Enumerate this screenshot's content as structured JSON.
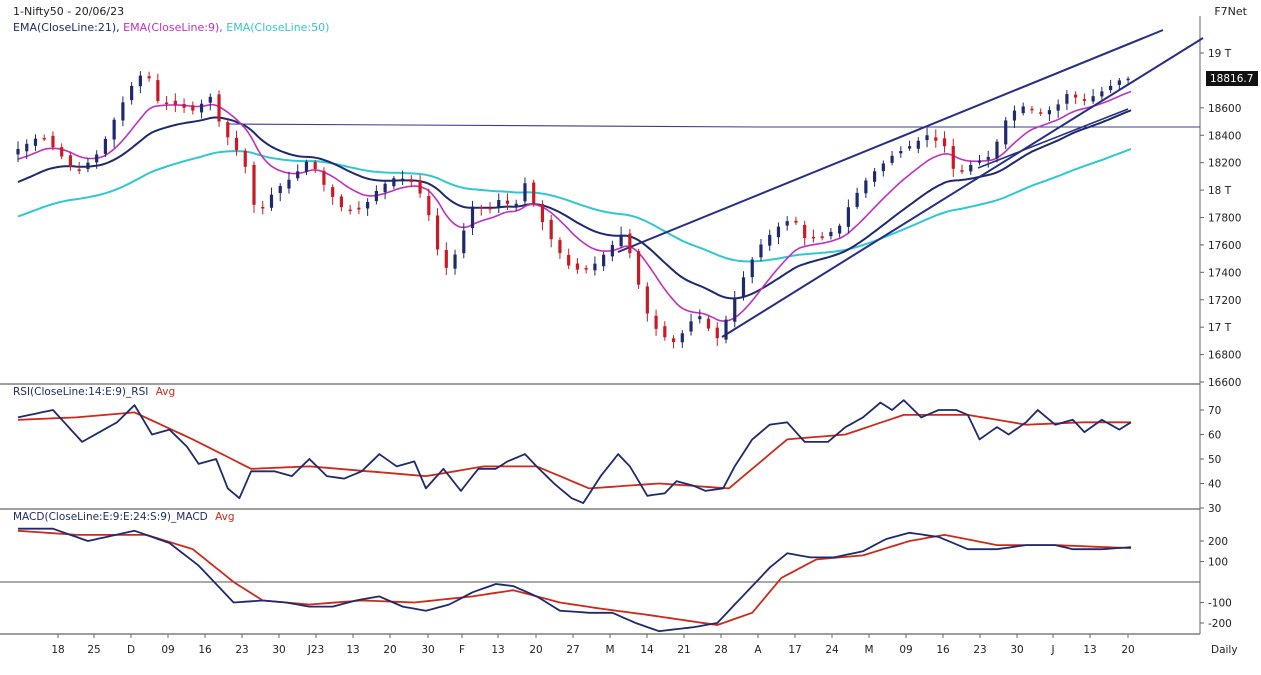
{
  "header": {
    "symbol_line": "1-Nifty50 - 20/06/23",
    "brand": "F7Net",
    "ema_labels": [
      {
        "text": "EMA(CloseLine:21),",
        "color": "#1f2a6e"
      },
      {
        "text": "EMA(CloseLine:9),",
        "color": "#c030c0"
      },
      {
        "text": "EMA(CloseLine:50)",
        "color": "#30c8d0"
      }
    ],
    "price_tag": "18816.7"
  },
  "colors": {
    "up": "#1f2a6e",
    "down": "#cc1a24",
    "ema21": "#1f2a6e",
    "ema9": "#c030c0",
    "ema50": "#30c8d0",
    "trend": "#262e86",
    "rsi": "#1f2a6e",
    "rsi_avg": "#cc2a1a",
    "macd": "#1f2a6e",
    "macd_avg": "#cc2a1a",
    "zero": "#555555"
  },
  "chart_data": [
    {
      "type": "candlestick",
      "title": "1-Nifty50 - 20/06/23",
      "y_ticks": [
        "19 T",
        "18600",
        "18400",
        "18200",
        "18 T",
        "17800",
        "17600",
        "17400",
        "17200",
        "17 T",
        "16800",
        "16600"
      ],
      "y_tick_values": [
        19000,
        18600,
        18400,
        18200,
        18000,
        17800,
        17600,
        17400,
        17200,
        17000,
        16800,
        16600
      ],
      "ylim": [
        16600,
        19200
      ],
      "x_ticks": [
        "18",
        "25",
        "D",
        "09",
        "16",
        "23",
        "30",
        "J23",
        "13",
        "20",
        "30",
        "F",
        "13",
        "20",
        "27",
        "M",
        "14",
        "21",
        "28",
        "A",
        "17",
        "24",
        "M",
        "09",
        "16",
        "23",
        "30",
        "J",
        "13",
        "20"
      ],
      "x_ticks_period": "Daily",
      "last_value": 18816.7,
      "horizontal_line": 18460,
      "trend_lines": [
        {
          "from": [
            "M 28",
            16920
          ],
          "to": [
            "J 20",
            18760
          ]
        },
        {
          "from": [
            "M 10",
            17490
          ],
          "to": [
            "J 20",
            19480
          ]
        },
        {
          "from": [
            "J23 29",
            18470
          ],
          "to": [
            "J 20",
            18460
          ]
        }
      ],
      "series": [
        {
          "name": "EMA(CloseLine:21)",
          "kind": "ema"
        },
        {
          "name": "EMA(CloseLine:9)",
          "kind": "ema"
        },
        {
          "name": "EMA(CloseLine:50)",
          "kind": "ema"
        }
      ],
      "close_path": [
        [
          0,
          18300
        ],
        [
          8,
          18400
        ],
        [
          14,
          18270
        ],
        [
          20,
          18120
        ],
        [
          28,
          18280
        ],
        [
          34,
          18560
        ],
        [
          40,
          18800
        ],
        [
          44,
          18870
        ],
        [
          48,
          18650
        ],
        [
          54,
          18620
        ],
        [
          60,
          18580
        ],
        [
          66,
          18680
        ],
        [
          70,
          18440
        ],
        [
          74,
          18330
        ],
        [
          78,
          18170
        ],
        [
          82,
          17800
        ],
        [
          88,
          18000
        ],
        [
          94,
          18090
        ],
        [
          100,
          18230
        ],
        [
          106,
          18000
        ],
        [
          112,
          17850
        ],
        [
          118,
          17860
        ],
        [
          124,
          18020
        ],
        [
          130,
          18100
        ],
        [
          136,
          18050
        ],
        [
          140,
          17900
        ],
        [
          146,
          17400
        ],
        [
          150,
          17530
        ],
        [
          156,
          17880
        ],
        [
          162,
          17860
        ],
        [
          166,
          17950
        ],
        [
          170,
          17850
        ],
        [
          174,
          18050
        ],
        [
          178,
          17850
        ],
        [
          184,
          17600
        ],
        [
          190,
          17420
        ],
        [
          196,
          17420
        ],
        [
          202,
          17550
        ],
        [
          208,
          17700
        ],
        [
          212,
          17380
        ],
        [
          216,
          17100
        ],
        [
          220,
          16950
        ],
        [
          226,
          16880
        ],
        [
          230,
          17030
        ],
        [
          234,
          17080
        ],
        [
          238,
          16960
        ],
        [
          240,
          16920
        ],
        [
          244,
          17100
        ],
        [
          248,
          17320
        ],
        [
          254,
          17580
        ],
        [
          260,
          17720
        ],
        [
          266,
          17800
        ],
        [
          270,
          17650
        ],
        [
          276,
          17650
        ],
        [
          282,
          17740
        ],
        [
          286,
          17920
        ],
        [
          292,
          18100
        ],
        [
          300,
          18250
        ],
        [
          306,
          18320
        ],
        [
          312,
          18400
        ],
        [
          318,
          18320
        ],
        [
          322,
          18100
        ],
        [
          328,
          18200
        ],
        [
          334,
          18250
        ],
        [
          340,
          18560
        ],
        [
          346,
          18620
        ],
        [
          350,
          18550
        ],
        [
          356,
          18600
        ],
        [
          360,
          18700
        ],
        [
          366,
          18650
        ],
        [
          372,
          18720
        ],
        [
          378,
          18800
        ],
        [
          382,
          18816.7
        ]
      ]
    },
    {
      "type": "line",
      "title": "RSI(CloseLine:14:E:9)_RSI",
      "y_ticks": [
        "70",
        "60",
        "50",
        "40",
        "30"
      ],
      "ylim": [
        30,
        75
      ],
      "series": [
        {
          "name": "RSI",
          "values_path": [
            [
              0,
              67
            ],
            [
              12,
              70
            ],
            [
              22,
              57
            ],
            [
              34,
              65
            ],
            [
              40,
              72
            ],
            [
              46,
              60
            ],
            [
              52,
              62
            ],
            [
              58,
              55
            ],
            [
              62,
              48
            ],
            [
              68,
              50
            ],
            [
              72,
              38
            ],
            [
              76,
              34
            ],
            [
              80,
              45
            ],
            [
              88,
              45
            ],
            [
              94,
              43
            ],
            [
              100,
              50
            ],
            [
              106,
              43
            ],
            [
              112,
              42
            ],
            [
              118,
              45
            ],
            [
              124,
              52
            ],
            [
              130,
              47
            ],
            [
              136,
              49
            ],
            [
              140,
              38
            ],
            [
              146,
              46
            ],
            [
              152,
              37
            ],
            [
              158,
              46
            ],
            [
              164,
              46
            ],
            [
              168,
              49
            ],
            [
              174,
              52
            ],
            [
              178,
              47
            ],
            [
              184,
              40
            ],
            [
              190,
              34
            ],
            [
              194,
              32
            ],
            [
              200,
              43
            ],
            [
              206,
              52
            ],
            [
              210,
              47
            ],
            [
              216,
              35
            ],
            [
              222,
              36
            ],
            [
              226,
              41
            ],
            [
              232,
              39
            ],
            [
              236,
              37
            ],
            [
              242,
              38
            ],
            [
              246,
              47
            ],
            [
              252,
              58
            ],
            [
              258,
              64
            ],
            [
              264,
              65
            ],
            [
              270,
              57
            ],
            [
              278,
              57
            ],
            [
              284,
              63
            ],
            [
              290,
              67
            ],
            [
              296,
              73
            ],
            [
              300,
              70
            ],
            [
              304,
              74
            ],
            [
              310,
              67
            ],
            [
              316,
              70
            ],
            [
              322,
              70
            ],
            [
              326,
              68
            ],
            [
              330,
              58
            ],
            [
              336,
              63
            ],
            [
              340,
              60
            ],
            [
              346,
              65
            ],
            [
              350,
              70
            ],
            [
              356,
              64
            ],
            [
              362,
              66
            ],
            [
              366,
              61
            ],
            [
              372,
              66
            ],
            [
              378,
              62
            ],
            [
              382,
              65
            ]
          ]
        },
        {
          "name": "Avg",
          "values_path": [
            [
              0,
              66
            ],
            [
              20,
              67
            ],
            [
              40,
              69
            ],
            [
              60,
              58
            ],
            [
              80,
              46
            ],
            [
              100,
              47
            ],
            [
              120,
              45
            ],
            [
              140,
              43
            ],
            [
              160,
              47
            ],
            [
              178,
              47
            ],
            [
              196,
              38
            ],
            [
              220,
              40
            ],
            [
              244,
              38
            ],
            [
              264,
              58
            ],
            [
              284,
              60
            ],
            [
              304,
              68
            ],
            [
              326,
              68
            ],
            [
              346,
              64
            ],
            [
              366,
              65
            ],
            [
              382,
              65
            ]
          ]
        }
      ]
    },
    {
      "type": "line",
      "title": "MACD(CloseLine:E:9:E:24:S:9)_MACD",
      "y_ticks": [
        "200",
        "100",
        "-100",
        "-200"
      ],
      "y_tick_values": [
        200,
        100,
        -100,
        -200
      ],
      "ylim": [
        -250,
        270
      ],
      "zero_line": 0,
      "series": [
        {
          "name": "MACD",
          "values_path": [
            [
              0,
              260
            ],
            [
              12,
              260
            ],
            [
              24,
              200
            ],
            [
              40,
              250
            ],
            [
              52,
              190
            ],
            [
              62,
              80
            ],
            [
              74,
              -100
            ],
            [
              84,
              -90
            ],
            [
              92,
              -100
            ],
            [
              100,
              -120
            ],
            [
              108,
              -120
            ],
            [
              116,
              -90
            ],
            [
              124,
              -70
            ],
            [
              132,
              -120
            ],
            [
              140,
              -140
            ],
            [
              148,
              -110
            ],
            [
              156,
              -50
            ],
            [
              164,
              -10
            ],
            [
              170,
              -20
            ],
            [
              178,
              -70
            ],
            [
              186,
              -140
            ],
            [
              196,
              -150
            ],
            [
              204,
              -150
            ],
            [
              212,
              -200
            ],
            [
              220,
              -240
            ],
            [
              232,
              -220
            ],
            [
              240,
              -200
            ],
            [
              248,
              -80
            ],
            [
              258,
              70
            ],
            [
              264,
              140
            ],
            [
              272,
              120
            ],
            [
              280,
              120
            ],
            [
              290,
              150
            ],
            [
              298,
              210
            ],
            [
              306,
              240
            ],
            [
              316,
              220
            ],
            [
              326,
              160
            ],
            [
              336,
              160
            ],
            [
              346,
              180
            ],
            [
              356,
              180
            ],
            [
              362,
              160
            ],
            [
              372,
              160
            ],
            [
              382,
              170
            ]
          ]
        },
        {
          "name": "Avg",
          "values_path": [
            [
              0,
              250
            ],
            [
              20,
              230
            ],
            [
              44,
              230
            ],
            [
              60,
              160
            ],
            [
              74,
              0
            ],
            [
              84,
              -90
            ],
            [
              100,
              -110
            ],
            [
              118,
              -90
            ],
            [
              136,
              -100
            ],
            [
              156,
              -70
            ],
            [
              170,
              -40
            ],
            [
              186,
              -100
            ],
            [
              200,
              -130
            ],
            [
              216,
              -160
            ],
            [
              240,
              -210
            ],
            [
              252,
              -150
            ],
            [
              262,
              20
            ],
            [
              274,
              110
            ],
            [
              290,
              130
            ],
            [
              306,
              200
            ],
            [
              318,
              230
            ],
            [
              336,
              180
            ],
            [
              356,
              180
            ],
            [
              382,
              165
            ]
          ]
        }
      ]
    }
  ]
}
